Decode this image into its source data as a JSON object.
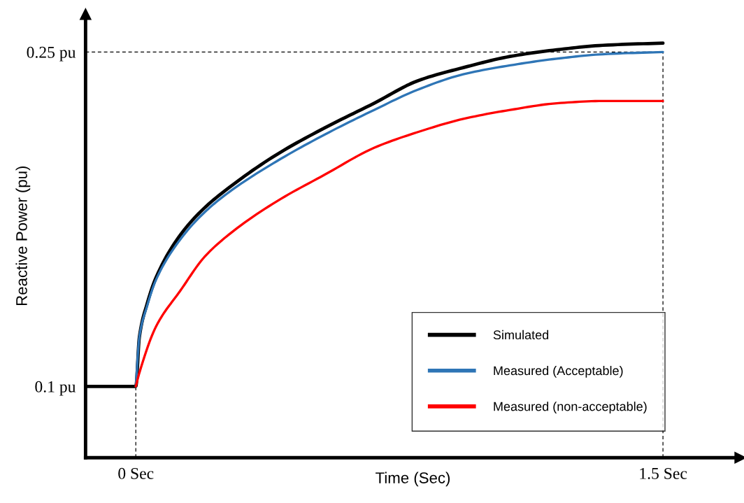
{
  "chart_data": {
    "type": "line",
    "xlabel": "Time (Sec)",
    "ylabel": "Reactive Power (pu)",
    "xlim": [
      -0.143,
      1.72
    ],
    "ylim": [
      0.068,
      0.267
    ],
    "xticks": [
      {
        "value": 0,
        "label": "0 Sec"
      },
      {
        "value": 1.5,
        "label": "1.5 Sec"
      }
    ],
    "yticks": [
      {
        "value": 0.1,
        "label": "0.1 pu"
      },
      {
        "value": 0.25,
        "label": "0.25 pu"
      }
    ],
    "grid": false,
    "legend": "bottom right",
    "marker": "none",
    "line_style": "solid",
    "series": [
      {
        "name": "Simulated",
        "color": "#000000",
        "x": [
          -0.143,
          0,
          0.01,
          0.032,
          0.058,
          0.127,
          0.195,
          0.264,
          0.401,
          0.538,
          0.678,
          0.801,
          0.932,
          1.065,
          1.198,
          1.329,
          1.5
        ],
        "values": [
          0.1,
          0.1,
          0.122,
          0.137,
          0.149,
          0.168,
          0.18,
          0.189,
          0.204,
          0.216,
          0.227,
          0.237,
          0.243,
          0.248,
          0.251,
          0.253,
          0.254
        ]
      },
      {
        "name": "Measured (Acceptable)",
        "color": "#2e75b6",
        "x": [
          0,
          0.01,
          0.032,
          0.058,
          0.127,
          0.195,
          0.264,
          0.401,
          0.538,
          0.678,
          0.801,
          0.932,
          1.065,
          1.198,
          1.329,
          1.5
        ],
        "values": [
          0.1,
          0.122,
          0.136,
          0.148,
          0.166,
          0.178,
          0.187,
          0.201,
          0.213,
          0.224,
          0.233,
          0.24,
          0.244,
          0.247,
          0.249,
          0.25
        ]
      },
      {
        "name": "Measured (non-acceptable)",
        "color": "#ff0000",
        "x": [
          0,
          0.01,
          0.058,
          0.127,
          0.195,
          0.264,
          0.401,
          0.538,
          0.678,
          0.801,
          0.932,
          1.065,
          1.198,
          1.329,
          1.5
        ],
        "values": [
          0.1,
          0.106,
          0.127,
          0.143,
          0.158,
          0.168,
          0.183,
          0.195,
          0.207,
          0.214,
          0.22,
          0.224,
          0.227,
          0.228,
          0.228
        ]
      }
    ],
    "ref_lines": [
      {
        "axis": "y",
        "value": 0.25,
        "color": "#000000",
        "line_style": "dashed"
      },
      {
        "axis": "x",
        "value": 0,
        "color": "#000000",
        "line_style": "dashed"
      },
      {
        "axis": "x",
        "value": 1.5,
        "color": "#000000",
        "line_style": "dashed"
      }
    ]
  }
}
